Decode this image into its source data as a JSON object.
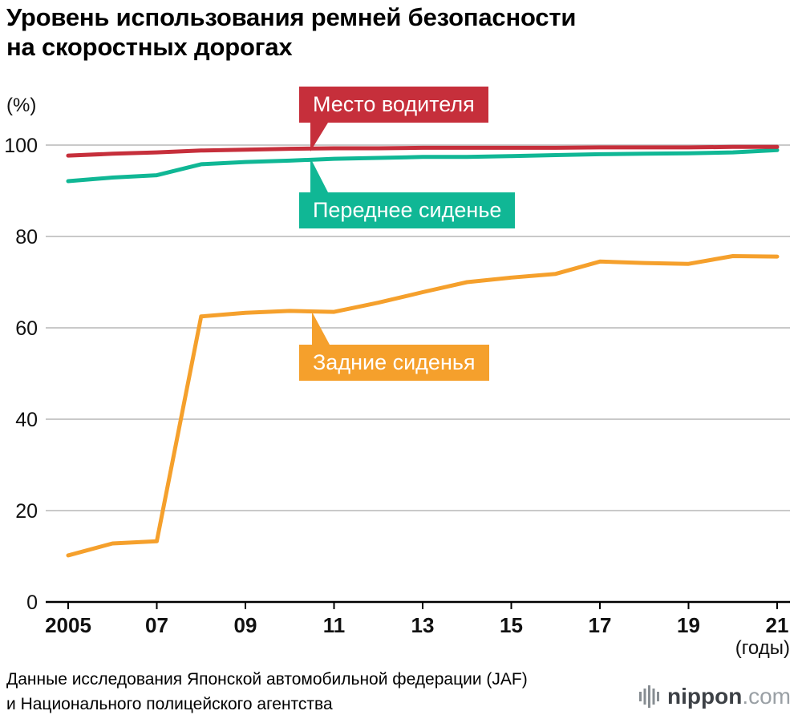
{
  "title": {
    "line1": "Уровень использования ремней безопасности",
    "line2": "на скоростных дорогах"
  },
  "chart_data": {
    "type": "line",
    "unit_label": "(%)",
    "x_axis_unit": "(годы)",
    "x": [
      2005,
      2006,
      2007,
      2008,
      2009,
      2010,
      2011,
      2012,
      2013,
      2014,
      2015,
      2016,
      2017,
      2018,
      2019,
      2020,
      2021
    ],
    "x_tick_years": [
      2005,
      2007,
      2009,
      2011,
      2013,
      2015,
      2017,
      2019,
      2021
    ],
    "x_tick_labels": [
      "2005",
      "07",
      "09",
      "11",
      "13",
      "15",
      "17",
      "19",
      "21"
    ],
    "y_ticks": [
      0,
      20,
      40,
      60,
      80,
      100
    ],
    "ylim": [
      0,
      100
    ],
    "grid": true,
    "series": [
      {
        "name": "Место водителя",
        "color": "#c62f3b",
        "values": [
          97.7,
          98.1,
          98.4,
          98.8,
          99.0,
          99.2,
          99.3,
          99.3,
          99.4,
          99.4,
          99.4,
          99.4,
          99.5,
          99.5,
          99.5,
          99.6,
          99.6
        ]
      },
      {
        "name": "Переднее сиденье",
        "color": "#10b795",
        "values": [
          92.1,
          92.9,
          93.4,
          95.8,
          96.3,
          96.6,
          97.0,
          97.2,
          97.4,
          97.4,
          97.6,
          97.8,
          98.0,
          98.1,
          98.2,
          98.4,
          98.9
        ]
      },
      {
        "name": "Задние сиденья",
        "color": "#f5a02c",
        "values": [
          10.2,
          12.8,
          13.3,
          62.5,
          63.3,
          63.7,
          63.5,
          65.5,
          67.8,
          70.0,
          71.0,
          71.8,
          74.5,
          74.2,
          74.0,
          75.7,
          75.6
        ]
      }
    ]
  },
  "footer": {
    "source_line1": "Данные исследования Японской автомобильной федерации (JAF)",
    "source_line2": "и Национального полицейского агентства",
    "brand_name": "nippon",
    "brand_tld": ".com"
  }
}
